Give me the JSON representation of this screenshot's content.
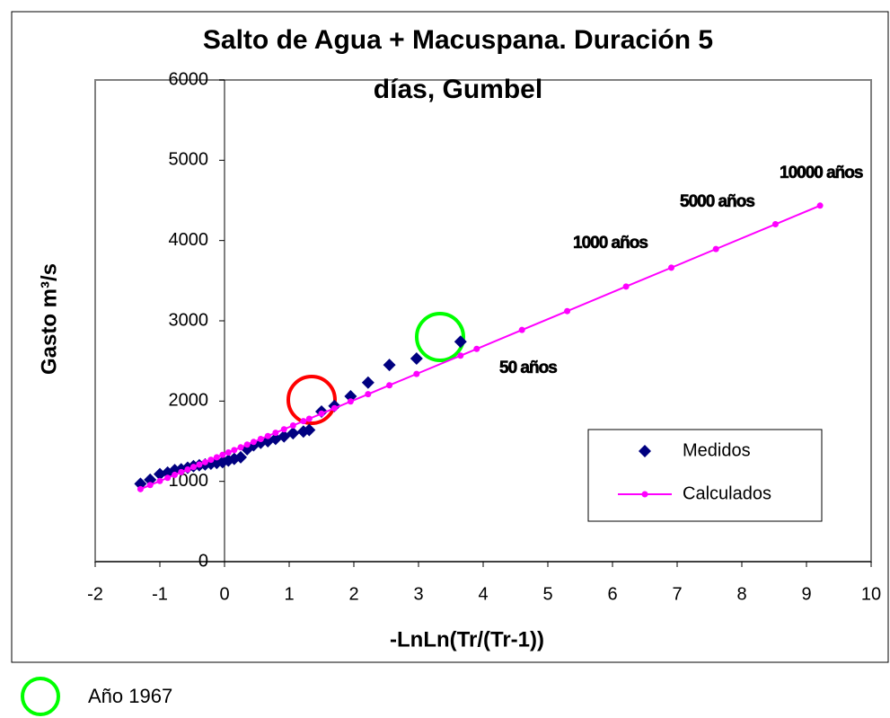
{
  "chart_data": {
    "type": "scatter",
    "title_lines": [
      "Salto de Agua + Macuspana. Duración 5",
      "días, Gumbel"
    ],
    "xlabel": "-LnLn(Tr/(Tr-1))",
    "ylabel": "Gasto m³/s",
    "xlim": [
      -2,
      10
    ],
    "ylim": [
      0,
      6000
    ],
    "xticks": [
      -2,
      -1,
      0,
      1,
      2,
      3,
      4,
      5,
      6,
      7,
      8,
      9,
      10
    ],
    "yticks": [
      0,
      1000,
      2000,
      3000,
      4000,
      5000,
      6000
    ],
    "legend": "lower right",
    "series": [
      {
        "name": "Medidos",
        "color": "#000080",
        "marker": "diamond",
        "line": false,
        "x": [
          -1.3,
          -1.15,
          -1.0,
          -0.88,
          -0.77,
          -0.67,
          -0.57,
          -0.48,
          -0.39,
          -0.3,
          -0.21,
          -0.12,
          -0.03,
          0.06,
          0.15,
          0.25,
          0.35,
          0.45,
          0.56,
          0.67,
          0.79,
          0.92,
          1.06,
          1.22,
          1.31,
          1.5,
          1.7,
          1.95,
          2.22,
          2.55,
          2.97,
          3.65
        ],
        "values": [
          970,
          1020,
          1090,
          1110,
          1140,
          1150,
          1170,
          1190,
          1200,
          1210,
          1220,
          1230,
          1240,
          1260,
          1280,
          1300,
          1400,
          1450,
          1480,
          1500,
          1530,
          1560,
          1600,
          1620,
          1640,
          1870,
          1940,
          2060,
          2230,
          2450,
          2530,
          2740
        ]
      },
      {
        "name": "Calculados",
        "color": "#ff00ff",
        "marker": "circle",
        "line": true,
        "x": [
          -1.3,
          -1.15,
          -1.0,
          -0.88,
          -0.77,
          -0.67,
          -0.57,
          -0.48,
          -0.39,
          -0.3,
          -0.21,
          -0.12,
          -0.03,
          0.06,
          0.15,
          0.25,
          0.35,
          0.45,
          0.56,
          0.67,
          0.79,
          0.92,
          1.06,
          1.22,
          1.31,
          1.5,
          1.7,
          1.95,
          2.22,
          2.55,
          2.97,
          3.65,
          3.9,
          4.6,
          5.3,
          6.21,
          6.91,
          7.6,
          8.52,
          9.21
        ],
        "values": [
          903,
          954,
          1004,
          1044,
          1081,
          1115,
          1148,
          1179,
          1209,
          1239,
          1269,
          1300,
          1330,
          1360,
          1390,
          1424,
          1458,
          1491,
          1528,
          1565,
          1605,
          1649,
          1696,
          1750,
          1780,
          1844,
          1911,
          1995,
          2086,
          2197,
          2338,
          2566,
          2650,
          2886,
          3121,
          3427,
          3662,
          3894,
          4203,
          4435
        ]
      }
    ],
    "annotations": [
      "50 años",
      "1000 años",
      "5000 años",
      "10000 años"
    ],
    "footnote": "Año 1967"
  }
}
